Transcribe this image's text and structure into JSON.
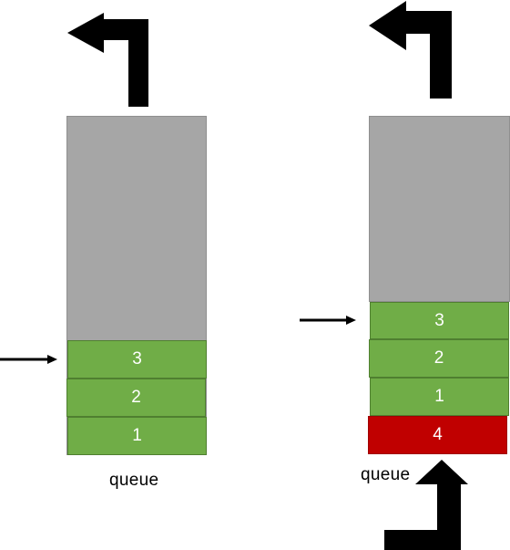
{
  "left_panel": {
    "items": [
      {
        "label": "3",
        "color": "#70ad47"
      },
      {
        "label": "2",
        "color": "#70ad47"
      },
      {
        "label": "1",
        "color": "#70ad47"
      }
    ],
    "caption": "queue"
  },
  "right_panel": {
    "items": [
      {
        "label": "3",
        "color": "#70ad47"
      },
      {
        "label": "2",
        "color": "#70ad47"
      },
      {
        "label": "1",
        "color": "#70ad47"
      },
      {
        "label": "4",
        "color": "#c00000"
      }
    ],
    "caption": "queue"
  },
  "colors": {
    "container": "#a6a6a6",
    "arrow": "#000000"
  }
}
